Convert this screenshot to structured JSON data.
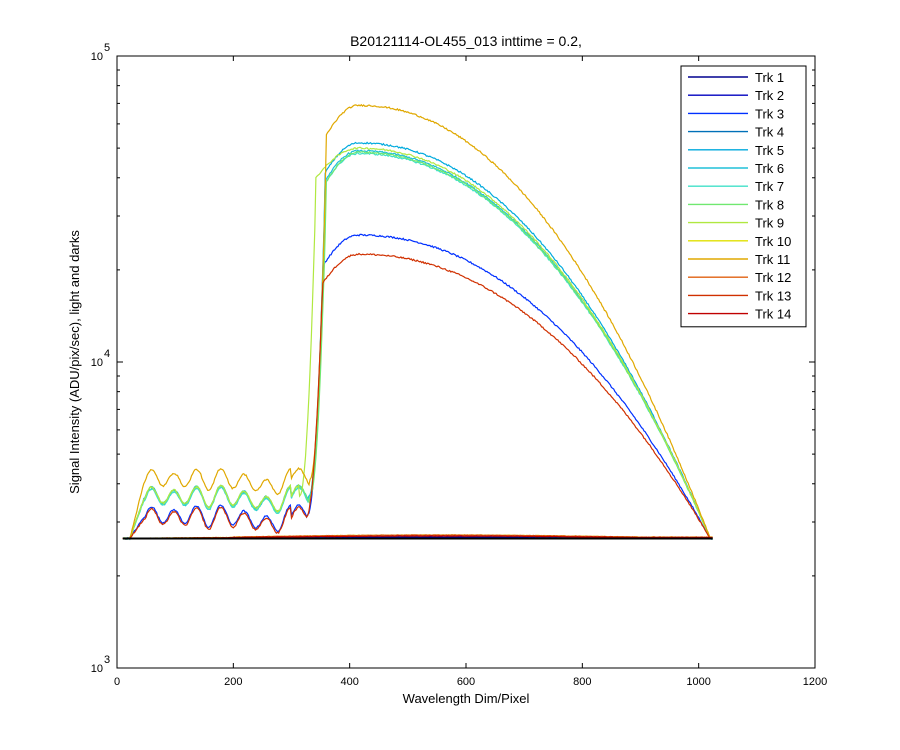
{
  "chart_data": {
    "type": "line",
    "title": "B20121114-OL455_013 inttime = 0.2,",
    "xlabel": "Wavelength Dim/Pixel",
    "ylabel": "Signal Intensity (ADU/pix/sec), light and darks",
    "xlim": [
      0,
      1200
    ],
    "ylim": [
      1000,
      100000
    ],
    "yscale": "log",
    "xticks": [
      0,
      200,
      400,
      600,
      800,
      1000,
      1200
    ],
    "xtick_labels": [
      "0",
      "200",
      "400",
      "600",
      "800",
      "1000",
      "1200"
    ],
    "yticks": [
      1000,
      10000,
      100000
    ],
    "ytick_labels": [
      {
        "base": "10",
        "exp": "3"
      },
      {
        "base": "10",
        "exp": "4"
      },
      {
        "base": "10",
        "exp": "5"
      }
    ],
    "grid": false,
    "legend_position": "top-right",
    "series": [
      {
        "name": "Trk 1",
        "color": "#00008f",
        "peak": 2650,
        "type": "dark"
      },
      {
        "name": "Trk 2",
        "color": "#0000bf",
        "peak": 2680,
        "type": "dark"
      },
      {
        "name": "Trk 3",
        "color": "#0030ff",
        "peak": 26000,
        "type": "light",
        "base": 3150,
        "onset": 355
      },
      {
        "name": "Trk 4",
        "color": "#0070b8",
        "peak": 2700,
        "type": "dark"
      },
      {
        "name": "Trk 5",
        "color": "#00aadd",
        "peak": 52000,
        "type": "light",
        "base": 3650,
        "onset": 358
      },
      {
        "name": "Trk 6",
        "color": "#20c0d8",
        "peak": 49000,
        "type": "light",
        "base": 3600,
        "onset": 358
      },
      {
        "name": "Trk 7",
        "color": "#40e0c8",
        "peak": 48000,
        "type": "light",
        "base": 3600,
        "onset": 358
      },
      {
        "name": "Trk 8",
        "color": "#70e870",
        "peak": 48500,
        "type": "light",
        "base": 3650,
        "onset": 360
      },
      {
        "name": "Trk 9",
        "color": "#b0e840",
        "peak": 50000,
        "type": "light",
        "base": 3650,
        "onset": 342
      },
      {
        "name": "Trk 10",
        "color": "#e0e000",
        "peak": 2720,
        "type": "dark"
      },
      {
        "name": "Trk 11",
        "color": "#e0a800",
        "peak": 69000,
        "type": "light",
        "base": 4150,
        "onset": 360
      },
      {
        "name": "Trk 12",
        "color": "#e06010",
        "peak": 2720,
        "type": "dark"
      },
      {
        "name": "Trk 13",
        "color": "#d03000",
        "peak": 22500,
        "type": "light",
        "base": 3100,
        "onset": 353
      },
      {
        "name": "Trk 14",
        "color": "#c00000",
        "peak": 2700,
        "type": "dark"
      }
    ],
    "x_range": [
      10,
      1024
    ],
    "dark_level": 2650,
    "end_level": 2650
  }
}
